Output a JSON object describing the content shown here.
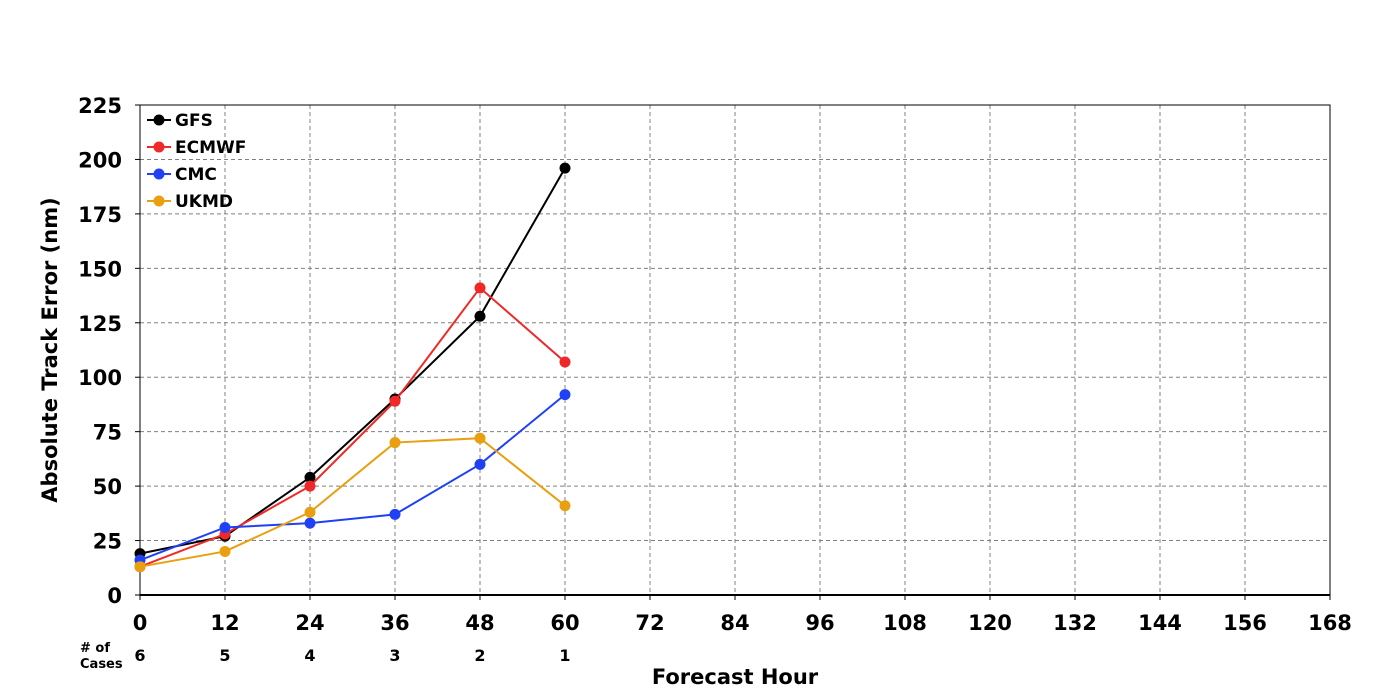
{
  "chart_data": {
    "type": "line",
    "xlabel": "Forecast Hour",
    "ylabel": "Absolute Track Error (nm)",
    "xlim": [
      0,
      168
    ],
    "ylim": [
      0,
      225
    ],
    "x_ticks": [
      0,
      12,
      24,
      36,
      48,
      60,
      72,
      84,
      96,
      108,
      120,
      132,
      144,
      156,
      168
    ],
    "y_ticks": [
      0,
      25,
      50,
      75,
      100,
      125,
      150,
      175,
      200,
      225
    ],
    "grid": true,
    "legend_position": "top-left",
    "series": [
      {
        "name": "GFS",
        "color": "#000000",
        "x": [
          0,
          12,
          24,
          36,
          48,
          60
        ],
        "values": [
          19,
          27,
          54,
          90,
          128,
          196
        ]
      },
      {
        "name": "ECMWF",
        "color": "#f02828",
        "x": [
          0,
          12,
          24,
          36,
          48,
          60
        ],
        "values": [
          13,
          28,
          50,
          89,
          141,
          107
        ]
      },
      {
        "name": "CMC",
        "color": "#2040f5",
        "x": [
          0,
          12,
          24,
          36,
          48,
          60
        ],
        "values": [
          16,
          31,
          33,
          37,
          60,
          92
        ]
      },
      {
        "name": "UKMD",
        "color": "#e8a010",
        "x": [
          0,
          12,
          24,
          36,
          48,
          60
        ],
        "values": [
          13,
          20,
          38,
          70,
          72,
          41
        ]
      }
    ],
    "cases": {
      "label_line1": "# of",
      "label_line2": "Cases",
      "x": [
        0,
        12,
        24,
        36,
        48,
        60
      ],
      "values": [
        "6",
        "5",
        "4",
        "3",
        "2",
        "1"
      ]
    }
  }
}
